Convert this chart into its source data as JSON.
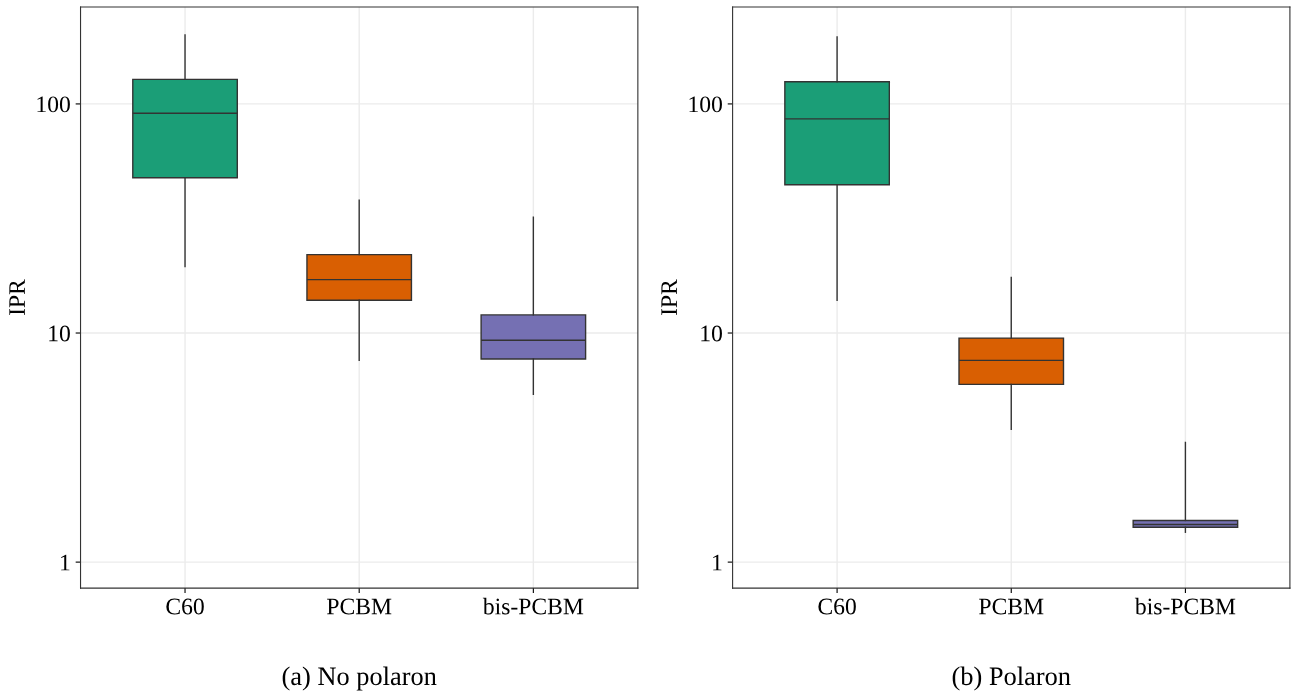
{
  "chart_data": [
    {
      "type": "box",
      "categories": [
        "C60",
        "PCBM",
        "bis-PCBM"
      ],
      "colors": [
        "#1b9e77",
        "#d95f02",
        "#7570b3"
      ],
      "ylabel": "IPR",
      "log": "y",
      "ylim": [
        0.77,
        265
      ],
      "yticks": [
        1,
        10,
        100
      ],
      "grid": true,
      "boxes": [
        {
          "low": 19.5,
          "q1": 47.6,
          "median": 91,
          "q3": 128,
          "high": 200
        },
        {
          "low": 7.6,
          "q1": 13.9,
          "median": 17.1,
          "q3": 22,
          "high": 38
        },
        {
          "low": 5.4,
          "q1": 7.7,
          "median": 9.3,
          "q3": 12,
          "high": 32
        }
      ],
      "annotations": [
        "(a) No polaron"
      ]
    },
    {
      "type": "box",
      "categories": [
        "C60",
        "PCBM",
        "bis-PCBM"
      ],
      "colors": [
        "#1b9e77",
        "#d95f02",
        "#7570b3"
      ],
      "ylabel": "IPR",
      "log": "y",
      "ylim": [
        0.77,
        265
      ],
      "yticks": [
        1,
        10,
        100
      ],
      "grid": true,
      "boxes": [
        {
          "low": 13.9,
          "q1": 44.4,
          "median": 86,
          "q3": 125,
          "high": 196
        },
        {
          "low": 3.8,
          "q1": 5.97,
          "median": 7.6,
          "q3": 9.5,
          "high": 17.5
        },
        {
          "low": 1.35,
          "q1": 1.42,
          "median": 1.46,
          "q3": 1.52,
          "high": 3.33
        }
      ],
      "annotations": [
        "(b) Polaron"
      ]
    }
  ]
}
